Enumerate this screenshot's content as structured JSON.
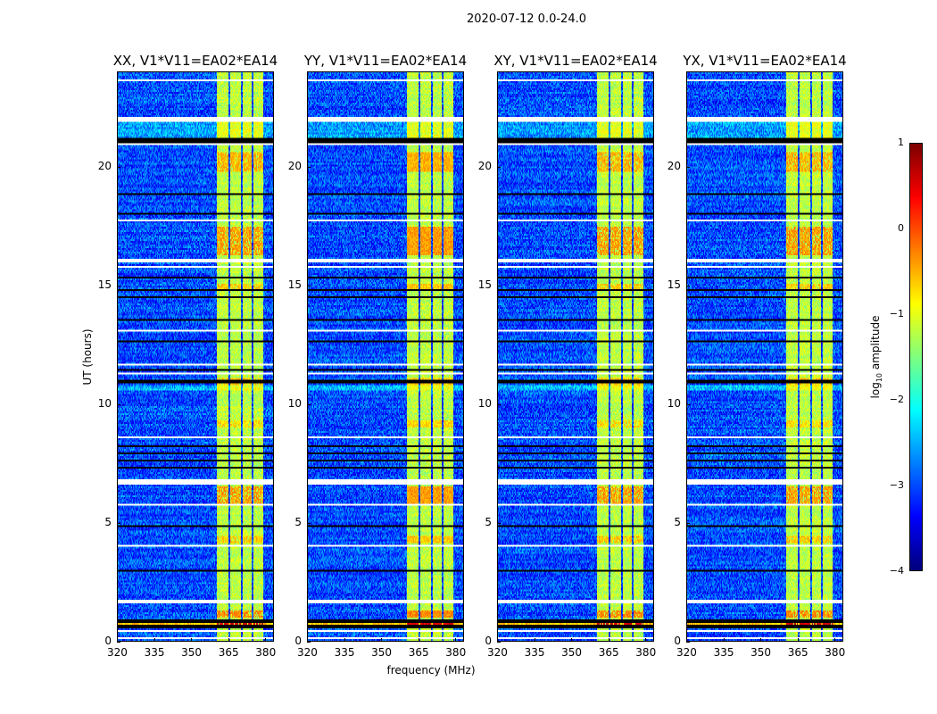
{
  "chart_data": {
    "type": "heatmap",
    "title": "2020-07-12 0.0-24.0",
    "xlabel": "frequency (MHz)",
    "ylabel": "UT (hours)",
    "xlim": [
      320,
      383.5
    ],
    "ylim": [
      0,
      24
    ],
    "xticks": [
      320,
      335,
      350,
      365,
      380
    ],
    "yticks": [
      0,
      5,
      10,
      15,
      20
    ],
    "panels": [
      {
        "title": "XX, V1*V11=EA02*EA14"
      },
      {
        "title": "YY, V1*V11=EA02*EA14"
      },
      {
        "title": "XY, V1*V11=EA02*EA14"
      },
      {
        "title": "YX, V1*V11=EA02*EA14"
      }
    ],
    "colorbar": {
      "label_main": "log",
      "label_sub": "10",
      "label_rest": " amplitude",
      "colormap": "jet",
      "range": [
        -4,
        1
      ],
      "ticks": [
        1,
        0,
        -1,
        -2,
        -3,
        -4
      ],
      "tick_labels": [
        "1",
        "0",
        "−1",
        "−2",
        "−3",
        "−4"
      ]
    },
    "background_level_log10": -3.0,
    "bright_channels_mhz": [
      [
        360.5,
        365.3
      ],
      [
        365.9,
        370.4
      ],
      [
        371.0,
        374.9
      ],
      [
        375.5,
        379.6
      ]
    ],
    "bright_level_log10": -1.2,
    "flagged_white_hours": [
      [
        23.65,
        23.72
      ],
      [
        22.55,
        22.6
      ],
      [
        21.88,
        22.1
      ],
      [
        20.92,
        20.99
      ],
      [
        17.9,
        17.95
      ],
      [
        17.7,
        17.74
      ],
      [
        16.0,
        16.15
      ],
      [
        15.75,
        15.85
      ],
      [
        15.42,
        15.46
      ],
      [
        13.05,
        13.12
      ],
      [
        12.42,
        12.46
      ],
      [
        11.62,
        11.7
      ],
      [
        11.25,
        11.3
      ],
      [
        9.5,
        9.55
      ],
      [
        8.52,
        8.6
      ],
      [
        6.62,
        6.82
      ],
      [
        5.7,
        5.74
      ],
      [
        4.0,
        4.04
      ],
      [
        3.5,
        3.54
      ],
      [
        1.55,
        1.72
      ],
      [
        1.78,
        1.83
      ],
      [
        0.4,
        0.44
      ],
      [
        0.05,
        0.14
      ]
    ],
    "zero_black_hours": [
      [
        21.03,
        21.2
      ],
      [
        18.8,
        18.92
      ],
      [
        18.5,
        18.55
      ],
      [
        18.0,
        18.05
      ],
      [
        15.28,
        15.35
      ],
      [
        14.8,
        14.86
      ],
      [
        14.5,
        14.55
      ],
      [
        14.0,
        14.05
      ],
      [
        13.5,
        13.6
      ],
      [
        12.6,
        12.7
      ],
      [
        11.4,
        11.5
      ],
      [
        10.9,
        11.0
      ],
      [
        8.2,
        8.28
      ],
      [
        7.9,
        7.95
      ],
      [
        7.6,
        7.65
      ],
      [
        7.3,
        7.35
      ],
      [
        4.8,
        4.85
      ],
      [
        2.9,
        3.0
      ],
      [
        0.75,
        0.9
      ],
      [
        0.55,
        0.65
      ]
    ],
    "strong_hours": [
      [
        0.66,
        0.74,
        0.6
      ],
      [
        1.0,
        1.3,
        -0.3
      ],
      [
        5.8,
        6.5,
        -0.4
      ],
      [
        16.3,
        17.5,
        -0.4
      ],
      [
        19.8,
        20.6,
        -0.5
      ],
      [
        4.1,
        4.4,
        -0.6
      ],
      [
        9.0,
        9.3,
        -0.7
      ],
      [
        10.8,
        11.1,
        -0.6
      ],
      [
        14.8,
        15.1,
        -0.6
      ]
    ]
  }
}
